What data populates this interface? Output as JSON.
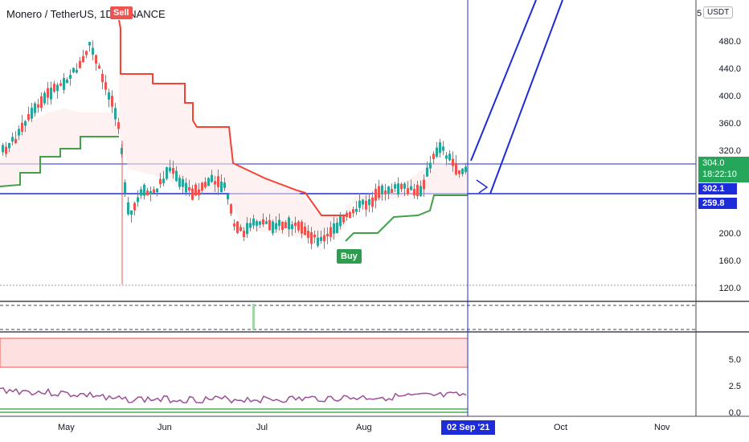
{
  "header": {
    "symbol": "Monero / TetherUS, 1D, BINANCE",
    "currency_badge": "USDT",
    "scale_prefix": "5"
  },
  "signals": {
    "sell_label": "Sell",
    "buy_label": "Buy"
  },
  "price_axis": {
    "labels": [
      "480.0",
      "440.0",
      "400.0",
      "360.0",
      "320.0",
      "200.0",
      "160.0",
      "120.0"
    ]
  },
  "indicator_axis": {
    "labels": [
      "5.0",
      "2.5",
      "0.0"
    ]
  },
  "price_tags": {
    "last_price": "304.0",
    "countdown": "18:22:10",
    "line_price": "302.1",
    "supertrend_price": "259.8"
  },
  "time_axis": {
    "labels": [
      "May",
      "Jun",
      "Jul",
      "Aug",
      "Oct",
      "Nov"
    ],
    "crosshair_date": "02 Sep '21"
  },
  "colors": {
    "up": "#26a69a",
    "down": "#ef5350",
    "supertrend_up": "#43a047",
    "supertrend_down": "#f44336",
    "crosshair": "#1e2bd8",
    "rsi_line": "#8e4e9a"
  },
  "chart_data": {
    "type": "candlestick",
    "title": "Monero / TetherUS, 1D, BINANCE",
    "xlabel": "",
    "ylabel": "",
    "ylim": [
      120,
      510
    ],
    "x_ticks": [
      "May",
      "Jun",
      "Jul",
      "Aug",
      "02 Sep '21",
      "Oct",
      "Nov"
    ],
    "y_ticks": [
      120,
      160,
      200,
      320,
      360,
      400,
      440,
      480
    ],
    "last_price": 304.0,
    "horizontal_levels": [
      302.1,
      259.8
    ],
    "supertrend": {
      "buy_signal_at": "Aug",
      "sell_signal_at": "mid May"
    },
    "indicator_pane_ylim": [
      0,
      6.5
    ],
    "indicator_ticks": [
      0.0,
      2.5,
      5.0
    ]
  }
}
